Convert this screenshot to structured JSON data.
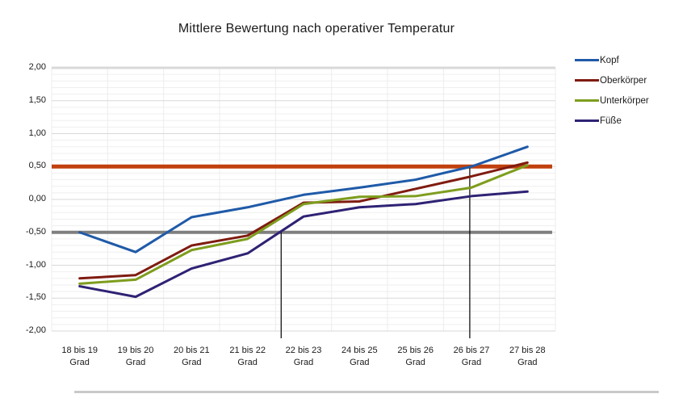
{
  "chart_data": {
    "type": "line",
    "title": "Mittlere Bewertung nach operativer Temperatur",
    "categories": [
      "18 bis 19",
      "19 bis 20",
      "20 bis 21",
      "21 bis 22",
      "22 bis 23",
      "24 bis 25",
      "25 bis 26",
      "26 bis 27",
      "27 bis 28"
    ],
    "category_unit": "Grad",
    "series": [
      {
        "name": "Kopf",
        "color": "#1f5aa8",
        "values": [
          -0.5,
          -0.8,
          -0.27,
          -0.12,
          0.07,
          0.18,
          0.3,
          0.5,
          0.8
        ]
      },
      {
        "name": "Oberkörper",
        "color": "#7f1b10",
        "values": [
          -1.2,
          -1.15,
          -0.7,
          -0.55,
          -0.05,
          -0.03,
          0.16,
          0.35,
          0.56
        ]
      },
      {
        "name": "Unterkörper",
        "color": "#7e9d1e",
        "values": [
          -1.28,
          -1.22,
          -0.77,
          -0.6,
          -0.07,
          0.04,
          0.05,
          0.18,
          0.52
        ]
      },
      {
        "name": "Füße",
        "color": "#2e2274",
        "values": [
          -1.32,
          -1.48,
          -1.05,
          -0.82,
          -0.26,
          -0.12,
          -0.07,
          0.05,
          0.12
        ]
      }
    ],
    "ylim": [
      -2,
      2
    ],
    "y_major_step": 0.5,
    "y_minor_step": 0.1,
    "y_tick_labels": [
      "2,00",
      "1,50",
      "1,00",
      "0,50",
      "0,00",
      "-0,50",
      "-1,00",
      "-1,50",
      "-2,00"
    ],
    "grid": true,
    "legend_position": "right",
    "annotations": {
      "hlines": [
        {
          "y": 0.5,
          "color": "#c0400e",
          "width": 5
        },
        {
          "y": -0.5,
          "color": "#7f7f7f",
          "width": 4
        }
      ],
      "vlines": [
        {
          "x_index": 3.6,
          "y_from": -0.5,
          "color": "#000000"
        },
        {
          "x_index": 6.97,
          "y_from": 0.5,
          "color": "#000000"
        }
      ]
    }
  }
}
